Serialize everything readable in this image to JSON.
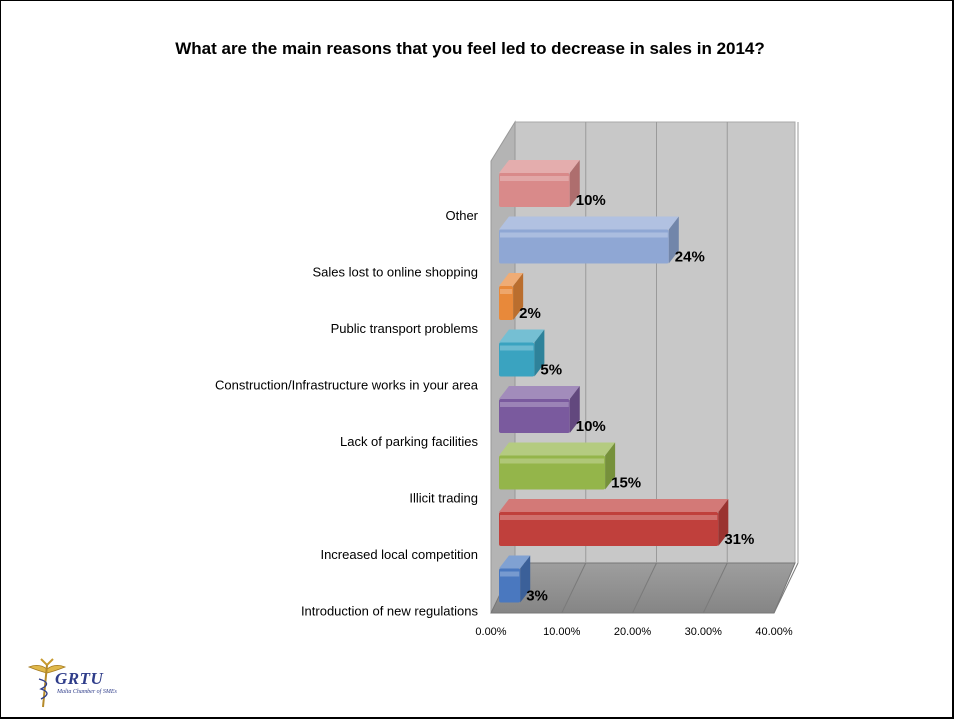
{
  "slide": {
    "title": "What are the main reasons that you feel led to decrease in sales in 2014?"
  },
  "logo": {
    "name": "GRTU",
    "subtitle": "Malta Chamber of SMEs"
  },
  "chart_data": {
    "type": "bar",
    "orientation": "horizontal",
    "style": "3d",
    "title": "What are the main reasons that you feel led to decrease in sales in 2014?",
    "categories": [
      "Other",
      "Sales lost to online shopping",
      "Public transport problems",
      "Construction/Infrastructure works in your area",
      "Lack of parking facilities",
      "Illicit trading",
      "Increased local competition",
      "Introduction of new regulations"
    ],
    "values": [
      0.1,
      0.24,
      0.02,
      0.05,
      0.1,
      0.15,
      0.31,
      0.03
    ],
    "data_labels": [
      "10%",
      "24%",
      "2%",
      "5%",
      "10%",
      "15%",
      "31%",
      "3%"
    ],
    "colors": [
      "#d98a8a",
      "#8fa7d4",
      "#e8893a",
      "#3aa3c0",
      "#7a5a9e",
      "#94b54a",
      "#c0403c",
      "#4a78bf"
    ],
    "xlim": [
      0,
      0.4
    ],
    "x_ticks": [
      0,
      0.1,
      0.2,
      0.3,
      0.4
    ],
    "x_tick_labels": [
      "0.00%",
      "10.00%",
      "20.00%",
      "30.00%",
      "40.00%"
    ],
    "grid": true,
    "legend": "none"
  }
}
